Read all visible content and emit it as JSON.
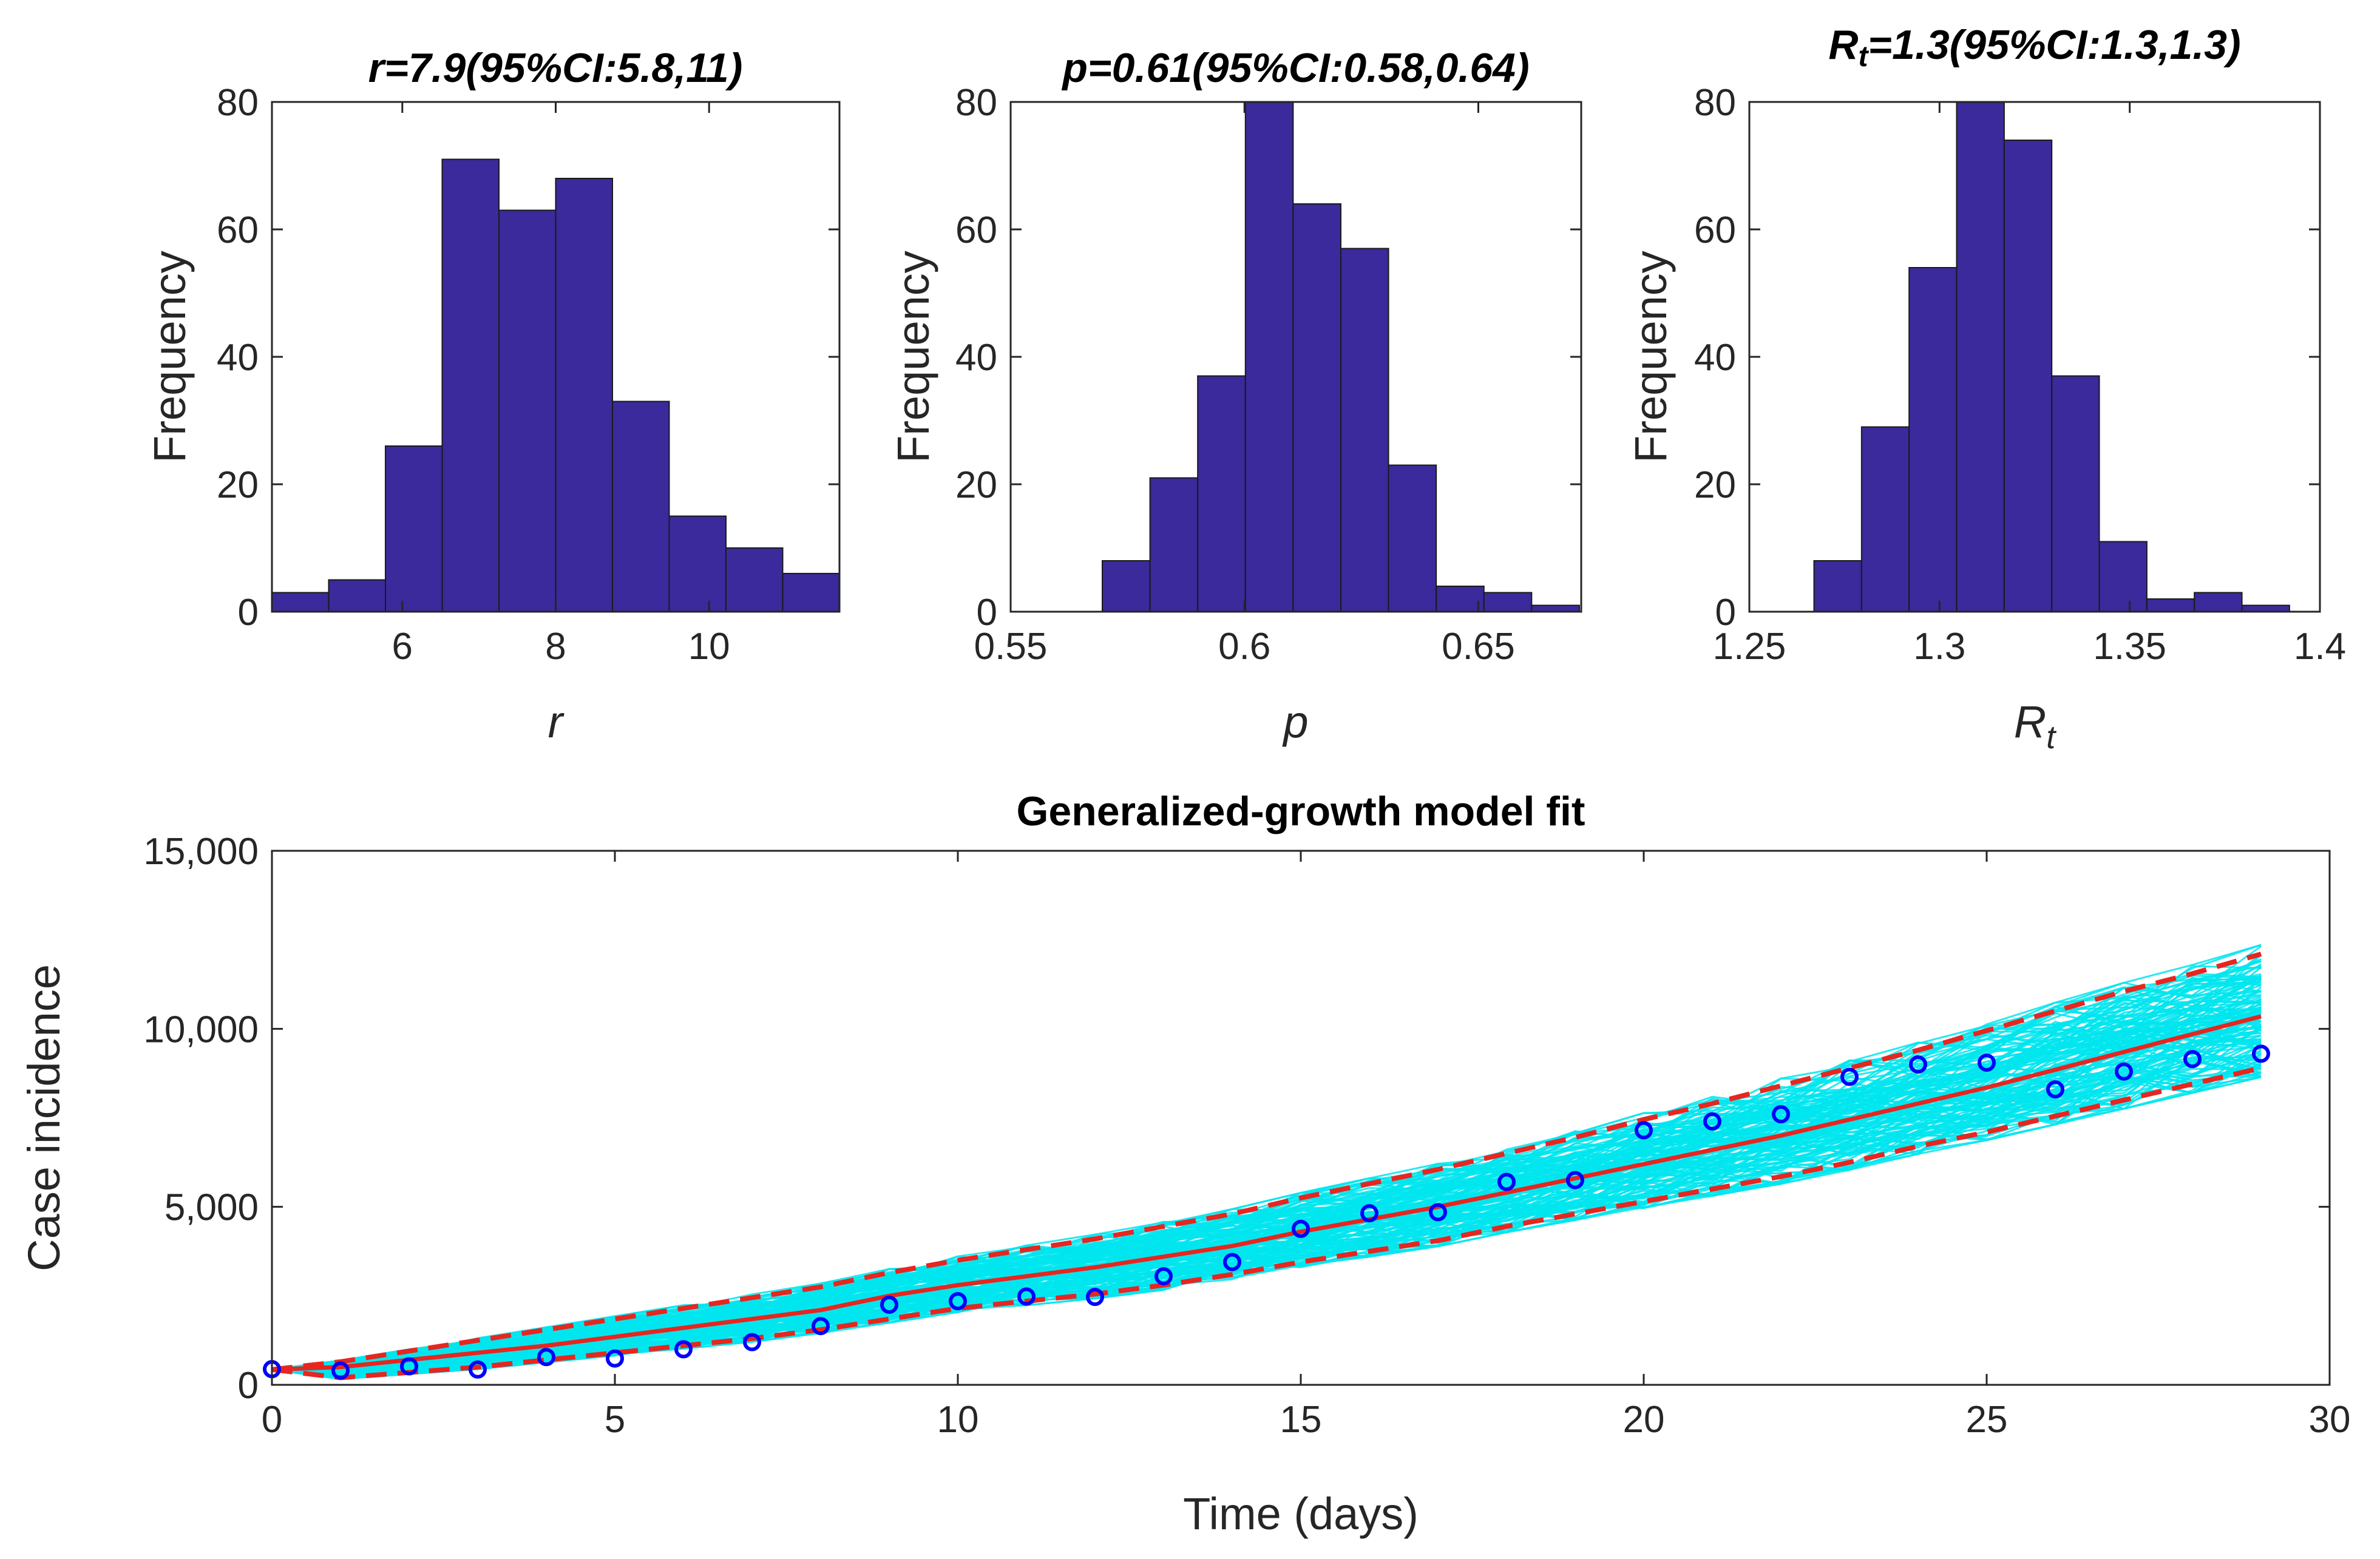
{
  "chart_data": [
    {
      "type": "bar",
      "subtype": "histogram",
      "title": "r=7.9(95%CI:5.8,11)",
      "xlabel": "r",
      "ylabel": "Frequency",
      "xlim": [
        4.3,
        11.7
      ],
      "ylim": [
        0,
        80
      ],
      "xticks": [
        6,
        8,
        10
      ],
      "xtick_labels": [
        "6",
        "8",
        "10"
      ],
      "yticks": [
        0,
        20,
        40,
        60,
        80
      ],
      "ytick_labels": [
        "0",
        "20",
        "40",
        "60",
        "80"
      ],
      "bin_width": 0.74,
      "bin_starts": [
        4.3,
        5.04,
        5.78,
        6.52,
        7.26,
        8.0,
        8.74,
        9.48,
        10.22,
        10.96
      ],
      "values": [
        3,
        5,
        26,
        71,
        63,
        68,
        33,
        15,
        10,
        6
      ],
      "color": "#3a2a9b"
    },
    {
      "type": "bar",
      "subtype": "histogram",
      "title": "p=0.61(95%CI:0.58,0.64)",
      "xlabel": "p",
      "ylabel": "Frequency",
      "xlim": [
        0.55,
        0.672
      ],
      "ylim": [
        0,
        80
      ],
      "xticks": [
        0.55,
        0.6,
        0.65
      ],
      "xtick_labels": [
        "0.55",
        "0.6",
        "0.65"
      ],
      "yticks": [
        0,
        20,
        40,
        60,
        80
      ],
      "ytick_labels": [
        "0",
        "20",
        "40",
        "60",
        "80"
      ],
      "bin_width": 0.0102,
      "bin_starts": [
        0.5696,
        0.5798,
        0.59,
        0.6002,
        0.6104,
        0.6206,
        0.6308,
        0.641,
        0.6512,
        0.6614
      ],
      "values": [
        8,
        21,
        37,
        80,
        64,
        57,
        23,
        4,
        3,
        1
      ],
      "color": "#3a2a9b"
    },
    {
      "type": "bar",
      "subtype": "histogram",
      "title_main": "R",
      "title_sub": "t",
      "title_rest": "=1.3(95%CI:1.3,1.3)",
      "xlabel_main": "R",
      "xlabel_sub": "t",
      "ylabel": "Frequency",
      "xlim": [
        1.25,
        1.4
      ],
      "ylim": [
        0,
        80
      ],
      "xticks": [
        1.25,
        1.3,
        1.35,
        1.4
      ],
      "xtick_labels": [
        "1.25",
        "1.3",
        "1.35",
        "1.4"
      ],
      "yticks": [
        0,
        20,
        40,
        60,
        80
      ],
      "ytick_labels": [
        "0",
        "20",
        "40",
        "60",
        "80"
      ],
      "bin_width": 0.0125,
      "bin_starts": [
        1.267,
        1.2795,
        1.292,
        1.3045,
        1.317,
        1.3295,
        1.342,
        1.3545,
        1.367,
        1.3795
      ],
      "values": [
        8,
        29,
        54,
        80,
        74,
        37,
        11,
        2,
        3,
        1
      ],
      "color": "#3a2a9b"
    },
    {
      "type": "line",
      "title": "Generalized-growth model fit",
      "xlabel": "Time (days)",
      "ylabel": "Case incidence",
      "xlim": [
        0,
        30
      ],
      "ylim": [
        0,
        15000
      ],
      "xticks": [
        0,
        5,
        10,
        15,
        20,
        25,
        30
      ],
      "xtick_labels": [
        "0",
        "5",
        "10",
        "15",
        "20",
        "25",
        "30"
      ],
      "yticks": [
        0,
        5000,
        10000,
        15000
      ],
      "ytick_labels": [
        "0",
        "5,000",
        "10,000",
        "15,000"
      ],
      "x": [
        0,
        1,
        2,
        3,
        4,
        5,
        6,
        7,
        8,
        9,
        10,
        11,
        12,
        13,
        14,
        15,
        16,
        17,
        18,
        19,
        20,
        21,
        22,
        23,
        24,
        25,
        26,
        27,
        28,
        29
      ],
      "series": [
        {
          "name": "Observed data",
          "style": "markers",
          "color": "#0000ff",
          "values": [
            440,
            400,
            520,
            430,
            780,
            740,
            1000,
            1200,
            1650,
            2250,
            2350,
            2480,
            2470,
            3050,
            3450,
            4380,
            4820,
            4850,
            5700,
            5750,
            7150,
            7400,
            7600,
            8650,
            9000,
            9050,
            8300,
            8800,
            9150,
            9300
          ]
        },
        {
          "name": "Model fit",
          "style": "solid",
          "color": "#e8251f",
          "values": [
            430,
            500,
            700,
            900,
            1100,
            1350,
            1600,
            1850,
            2100,
            2500,
            2800,
            3050,
            3300,
            3600,
            3900,
            4300,
            4650,
            5000,
            5400,
            5800,
            6200,
            6600,
            7000,
            7450,
            7900,
            8350,
            8850,
            9350,
            9850,
            10350
          ]
        },
        {
          "name": "95% PI upper",
          "style": "dashed",
          "color": "#e8251f",
          "values": [
            430,
            650,
            950,
            1250,
            1550,
            1850,
            2150,
            2450,
            2750,
            3150,
            3500,
            3800,
            4100,
            4450,
            4800,
            5250,
            5650,
            6050,
            6500,
            6950,
            7450,
            7900,
            8400,
            8900,
            9400,
            9950,
            10500,
            11050,
            11550,
            12100
          ]
        },
        {
          "name": "95% PI lower",
          "style": "dashed",
          "color": "#e8251f",
          "values": [
            430,
            200,
            350,
            500,
            700,
            900,
            1100,
            1300,
            1550,
            1850,
            2150,
            2350,
            2550,
            2800,
            3100,
            3450,
            3750,
            4050,
            4450,
            4800,
            5150,
            5500,
            5850,
            6250,
            6700,
            7100,
            7550,
            8000,
            8450,
            8900
          ]
        }
      ],
      "ensemble_color": "#00e5ee"
    }
  ]
}
